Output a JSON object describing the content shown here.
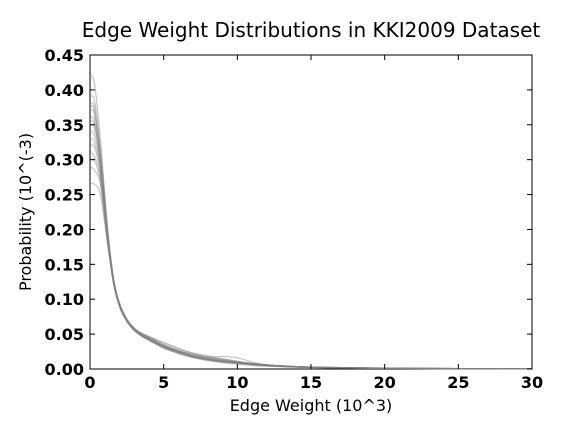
{
  "chart_data": {
    "type": "line",
    "title": "Edge Weight Distributions in KKI2009 Dataset",
    "xlabel": "Edge Weight (10^3)",
    "ylabel": "Probability (10^(-3)",
    "xlim": [
      0,
      30
    ],
    "ylim": [
      0,
      0.45
    ],
    "grid": false,
    "legend": "none",
    "x_ticks": [
      0,
      5,
      10,
      15,
      20,
      25,
      30
    ],
    "x_tick_labels": [
      "0",
      "5",
      "10",
      "15",
      "20",
      "25",
      "30"
    ],
    "y_ticks": [
      0.0,
      0.05,
      0.1,
      0.15,
      0.2,
      0.25,
      0.3,
      0.35,
      0.4,
      0.45
    ],
    "y_tick_labels": [
      "0.00",
      "0.05",
      "0.10",
      "0.15",
      "0.20",
      "0.25",
      "0.30",
      "0.35",
      "0.40",
      "0.45"
    ],
    "line_color": "#808080",
    "x": [
      0,
      0.3,
      0.7,
      1.2,
      1.6,
      2.0,
      2.5,
      3.0,
      3.5,
      4.0,
      5.0,
      6.0,
      7.0,
      8.0,
      9.0,
      10.0,
      11.0,
      12.0,
      14.0,
      16.0,
      18.0,
      20.0,
      22.0,
      25.0,
      30.0
    ],
    "series": [
      {
        "values": [
          0.42,
          0.41,
          0.33,
          0.2,
          0.13,
          0.095,
          0.072,
          0.058,
          0.05,
          0.044,
          0.033,
          0.025,
          0.018,
          0.014,
          0.011,
          0.009,
          0.007,
          0.005,
          0.003,
          0.0022,
          0.0016,
          0.0012,
          0.0009,
          0.0006,
          0.0002
        ]
      },
      {
        "values": [
          0.39,
          0.385,
          0.32,
          0.2,
          0.13,
          0.094,
          0.071,
          0.058,
          0.049,
          0.043,
          0.032,
          0.024,
          0.017,
          0.014,
          0.011,
          0.009,
          0.007,
          0.005,
          0.003,
          0.0021,
          0.0015,
          0.0011,
          0.0008,
          0.0005,
          0.0002
        ]
      },
      {
        "values": [
          0.38,
          0.375,
          0.31,
          0.195,
          0.128,
          0.093,
          0.07,
          0.057,
          0.049,
          0.043,
          0.033,
          0.025,
          0.019,
          0.015,
          0.012,
          0.009,
          0.007,
          0.005,
          0.0031,
          0.0022,
          0.0016,
          0.0011,
          0.0008,
          0.0005,
          0.0002
        ]
      },
      {
        "values": [
          0.37,
          0.365,
          0.305,
          0.192,
          0.127,
          0.092,
          0.07,
          0.056,
          0.048,
          0.042,
          0.032,
          0.024,
          0.018,
          0.014,
          0.011,
          0.009,
          0.007,
          0.005,
          0.003,
          0.002,
          0.0015,
          0.0011,
          0.0008,
          0.0005,
          0.0002
        ]
      },
      {
        "values": [
          0.36,
          0.355,
          0.3,
          0.19,
          0.126,
          0.092,
          0.069,
          0.056,
          0.048,
          0.042,
          0.031,
          0.023,
          0.017,
          0.013,
          0.01,
          0.008,
          0.006,
          0.0045,
          0.003,
          0.002,
          0.0014,
          0.001,
          0.0007,
          0.0005,
          0.0002
        ]
      },
      {
        "values": [
          0.35,
          0.345,
          0.295,
          0.19,
          0.127,
          0.093,
          0.071,
          0.058,
          0.05,
          0.045,
          0.034,
          0.026,
          0.02,
          0.016,
          0.013,
          0.01,
          0.008,
          0.006,
          0.0035,
          0.0024,
          0.0017,
          0.0012,
          0.0009,
          0.0006,
          0.0002
        ]
      },
      {
        "values": [
          0.34,
          0.335,
          0.29,
          0.188,
          0.126,
          0.092,
          0.07,
          0.057,
          0.049,
          0.043,
          0.032,
          0.024,
          0.018,
          0.014,
          0.011,
          0.009,
          0.007,
          0.005,
          0.003,
          0.0021,
          0.0015,
          0.0011,
          0.0008,
          0.0005,
          0.0002
        ]
      },
      {
        "values": [
          0.33,
          0.325,
          0.285,
          0.186,
          0.125,
          0.091,
          0.069,
          0.056,
          0.048,
          0.042,
          0.031,
          0.024,
          0.018,
          0.014,
          0.011,
          0.009,
          0.007,
          0.005,
          0.003,
          0.002,
          0.0015,
          0.0011,
          0.0008,
          0.0005,
          0.0002
        ]
      },
      {
        "values": [
          0.31,
          0.305,
          0.275,
          0.183,
          0.124,
          0.091,
          0.07,
          0.058,
          0.051,
          0.046,
          0.035,
          0.026,
          0.019,
          0.015,
          0.012,
          0.01,
          0.008,
          0.006,
          0.0035,
          0.0024,
          0.0017,
          0.0012,
          0.0009,
          0.0006,
          0.0002
        ]
      },
      {
        "values": [
          0.29,
          0.285,
          0.265,
          0.18,
          0.123,
          0.09,
          0.068,
          0.055,
          0.047,
          0.041,
          0.03,
          0.023,
          0.017,
          0.013,
          0.01,
          0.008,
          0.006,
          0.0045,
          0.0028,
          0.002,
          0.0014,
          0.001,
          0.0007,
          0.0005,
          0.0002
        ]
      },
      {
        "values": [
          0.265,
          0.265,
          0.25,
          0.178,
          0.122,
          0.09,
          0.069,
          0.057,
          0.05,
          0.045,
          0.034,
          0.026,
          0.021,
          0.017,
          0.014,
          0.011,
          0.008,
          0.006,
          0.0035,
          0.0024,
          0.0017,
          0.0012,
          0.0009,
          0.0006,
          0.0002
        ]
      },
      {
        "values": [
          0.375,
          0.37,
          0.3,
          0.185,
          0.122,
          0.089,
          0.068,
          0.056,
          0.049,
          0.044,
          0.034,
          0.027,
          0.021,
          0.017,
          0.018,
          0.016,
          0.01,
          0.006,
          0.0035,
          0.0024,
          0.0017,
          0.0012,
          0.0009,
          0.0006,
          0.0002
        ]
      },
      {
        "values": [
          0.355,
          0.35,
          0.298,
          0.191,
          0.126,
          0.091,
          0.069,
          0.055,
          0.047,
          0.041,
          0.03,
          0.022,
          0.016,
          0.012,
          0.009,
          0.007,
          0.005,
          0.004,
          0.0025,
          0.0018,
          0.0013,
          0.0009,
          0.0007,
          0.0004,
          0.0002
        ]
      },
      {
        "values": [
          0.32,
          0.318,
          0.282,
          0.186,
          0.125,
          0.092,
          0.071,
          0.059,
          0.052,
          0.047,
          0.037,
          0.029,
          0.023,
          0.019,
          0.015,
          0.011,
          0.008,
          0.006,
          0.0035,
          0.0024,
          0.0017,
          0.0012,
          0.0009,
          0.0006,
          0.0002
        ]
      },
      {
        "values": [
          0.3,
          0.298,
          0.27,
          0.182,
          0.124,
          0.091,
          0.07,
          0.057,
          0.05,
          0.046,
          0.038,
          0.03,
          0.022,
          0.017,
          0.013,
          0.01,
          0.008,
          0.006,
          0.0035,
          0.0024,
          0.0017,
          0.0012,
          0.0009,
          0.0006,
          0.0002
        ]
      }
    ]
  }
}
